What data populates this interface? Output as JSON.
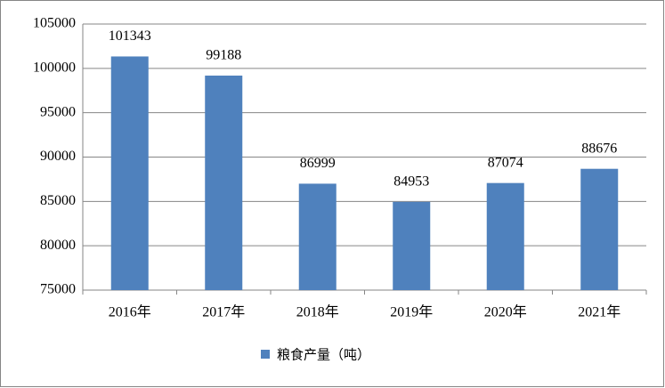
{
  "chart_data": {
    "type": "bar",
    "categories": [
      "2016年",
      "2017年",
      "2018年",
      "2019年",
      "2020年",
      "2021年"
    ],
    "series": [
      {
        "name": "粮食产量（吨）",
        "color": "#4f81bd",
        "values": [
          101343,
          99188,
          86999,
          84953,
          87074,
          88676
        ]
      }
    ],
    "ylim": [
      75000,
      105000
    ],
    "yticks": [
      75000,
      80000,
      85000,
      90000,
      95000,
      100000,
      105000
    ],
    "grid": true,
    "legend": "bottom"
  }
}
